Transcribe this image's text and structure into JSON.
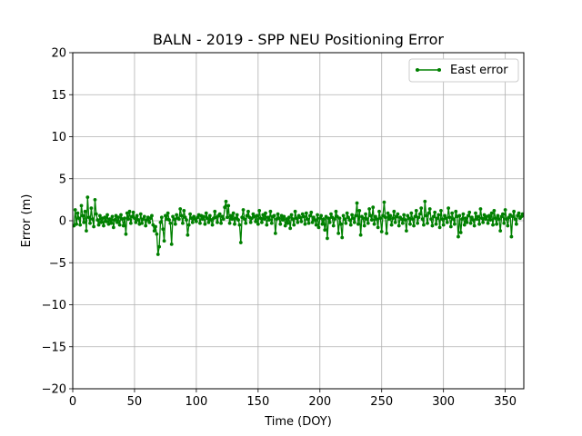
{
  "chart_data": {
    "type": "line",
    "title": "BALN - 2019 - SPP NEU Positioning Error",
    "xlabel": "Time (DOY)",
    "ylabel": "Error (m)",
    "xlim": [
      0,
      365
    ],
    "ylim": [
      -20,
      20
    ],
    "xticks": [
      0,
      50,
      100,
      150,
      200,
      250,
      300,
      350
    ],
    "yticks": [
      -20,
      -15,
      -10,
      -5,
      0,
      5,
      10,
      15,
      20
    ],
    "xtick_labels": [
      "0",
      "50",
      "100",
      "150",
      "200",
      "250",
      "300",
      "350"
    ],
    "ytick_labels": [
      "−20",
      "−15",
      "−10",
      "−5",
      "0",
      "5",
      "10",
      "15",
      "20"
    ],
    "grid": true,
    "legend_position": "top-right",
    "series": [
      {
        "name": "East error",
        "color": "#008000",
        "marker": "dot",
        "x": [
          1,
          2,
          3,
          4,
          5,
          6,
          7,
          8,
          9,
          10,
          11,
          12,
          13,
          14,
          15,
          16,
          17,
          18,
          19,
          20,
          21,
          22,
          23,
          24,
          25,
          26,
          27,
          28,
          29,
          30,
          31,
          32,
          33,
          34,
          35,
          36,
          37,
          38,
          39,
          40,
          41,
          42,
          43,
          44,
          45,
          46,
          47,
          48,
          49,
          50,
          51,
          52,
          53,
          54,
          55,
          56,
          57,
          58,
          59,
          60,
          61,
          62,
          63,
          64,
          65,
          66,
          67,
          68,
          69,
          70,
          71,
          72,
          73,
          74,
          75,
          76,
          77,
          78,
          79,
          80,
          81,
          82,
          83,
          84,
          85,
          86,
          87,
          88,
          89,
          90,
          91,
          92,
          93,
          94,
          95,
          96,
          97,
          98,
          99,
          100,
          101,
          102,
          103,
          104,
          105,
          106,
          107,
          108,
          109,
          110,
          111,
          112,
          113,
          114,
          115,
          116,
          117,
          118,
          119,
          120,
          121,
          122,
          123,
          124,
          125,
          126,
          127,
          128,
          129,
          130,
          131,
          132,
          133,
          134,
          135,
          136,
          137,
          138,
          139,
          140,
          141,
          142,
          143,
          144,
          145,
          146,
          147,
          148,
          149,
          150,
          151,
          152,
          153,
          154,
          155,
          156,
          157,
          158,
          159,
          160,
          161,
          162,
          163,
          164,
          165,
          166,
          167,
          168,
          169,
          170,
          171,
          172,
          173,
          174,
          175,
          176,
          177,
          178,
          179,
          180,
          181,
          182,
          183,
          184,
          185,
          186,
          187,
          188,
          189,
          190,
          191,
          192,
          193,
          194,
          195,
          196,
          197,
          198,
          199,
          200,
          201,
          202,
          203,
          204,
          205,
          206,
          207,
          208,
          209,
          210,
          211,
          212,
          213,
          214,
          215,
          216,
          217,
          218,
          219,
          220,
          221,
          222,
          223,
          224,
          225,
          226,
          227,
          228,
          229,
          230,
          231,
          232,
          233,
          234,
          235,
          236,
          237,
          238,
          239,
          240,
          241,
          242,
          243,
          244,
          245,
          246,
          247,
          248,
          249,
          250,
          251,
          252,
          253,
          254,
          255,
          256,
          257,
          258,
          259,
          260,
          261,
          262,
          263,
          264,
          265,
          266,
          267,
          268,
          269,
          270,
          271,
          272,
          273,
          274,
          275,
          276,
          277,
          278,
          279,
          280,
          281,
          282,
          283,
          284,
          285,
          286,
          287,
          288,
          289,
          290,
          291,
          292,
          293,
          294,
          295,
          296,
          297,
          298,
          299,
          300,
          301,
          302,
          303,
          304,
          305,
          306,
          307,
          308,
          309,
          310,
          311,
          312,
          313,
          314,
          315,
          316,
          317,
          318,
          319,
          320,
          321,
          322,
          323,
          324,
          325,
          326,
          327,
          328,
          329,
          330,
          331,
          332,
          333,
          334,
          335,
          336,
          337,
          338,
          339,
          340,
          341,
          342,
          343,
          344,
          345,
          346,
          347,
          348,
          349,
          350,
          351,
          352,
          353,
          354,
          355,
          356,
          357,
          358,
          359,
          360,
          361,
          362,
          363,
          364,
          365
        ],
        "y": [
          -0.6,
          1.3,
          -0.4,
          0.9,
          0.3,
          -0.5,
          1.8,
          0.6,
          -0.2,
          1.1,
          -1.2,
          2.8,
          0.4,
          -0.3,
          1.5,
          0.2,
          -0.7,
          2.5,
          0.8,
          0.1,
          -0.5,
          0.6,
          -0.2,
          0.3,
          -0.6,
          0.4,
          -0.1,
          0.7,
          -0.4,
          0.2,
          -0.3,
          0.5,
          -0.8,
          0.1,
          0.6,
          -0.2,
          0.4,
          -0.5,
          0.7,
          0.2,
          -0.6,
          0.3,
          -1.6,
          0.9,
          0.2,
          1.1,
          -0.3,
          0.5,
          1.0,
          0.3,
          -0.2,
          0.6,
          0.1,
          -0.4,
          0.8,
          -0.3,
          0.2,
          0.5,
          -0.6,
          0.1,
          0.4,
          -0.2,
          0.3,
          0.6,
          -0.5,
          -1.2,
          -0.7,
          -1.6,
          -4.0,
          -3.1,
          -0.2,
          0.4,
          -1.0,
          -2.4,
          0.6,
          0.2,
          0.9,
          0.1,
          -0.3,
          -2.8,
          0.5,
          0.2,
          -0.4,
          0.7,
          0.3,
          0.2,
          1.4,
          0.6,
          -0.3,
          1.2,
          0.4,
          0.1,
          -1.7,
          -0.5,
          0.8,
          0.3,
          -0.2,
          0.5,
          0.2,
          -0.1,
          0.4,
          0.7,
          -0.3,
          0.6,
          0.2,
          0.5,
          -0.4,
          0.9,
          0.3,
          -0.2,
          0.6,
          0.1,
          -0.5,
          0.3,
          1.1,
          0.4,
          -0.2,
          0.6,
          0.8,
          -0.3,
          0.5,
          0.2,
          1.6,
          2.3,
          0.4,
          1.8,
          -0.3,
          0.6,
          0.2,
          0.9,
          -0.4,
          0.3,
          0.7,
          0.1,
          -0.5,
          -2.6,
          0.4,
          1.3,
          0.2,
          -0.3,
          0.6,
          1.1,
          0.4,
          -0.2,
          0.3,
          0.8,
          0.5,
          -0.1,
          0.6,
          -0.4,
          1.2,
          0.3,
          -0.2,
          0.7,
          0.2,
          0.9,
          -0.5,
          0.4,
          0.1,
          1.1,
          -0.3,
          0.5,
          0.6,
          -1.5,
          0.2,
          0.8,
          0.3,
          -0.4,
          0.6,
          0.1,
          0.5,
          -0.6,
          0.2,
          -0.3,
          0.4,
          -0.9,
          0.7,
          0.2,
          -0.5,
          1.1,
          0.3,
          -0.2,
          0.6,
          0.4,
          -0.1,
          0.8,
          0.5,
          -0.4,
          0.9,
          0.2,
          -0.3,
          0.6,
          1.0,
          -0.2,
          0.4,
          0.1,
          -0.5,
          0.7,
          -0.8,
          0.3,
          0.6,
          -0.4,
          0.2,
          -1.1,
          0.5,
          -2.1,
          0.3,
          -0.2,
          0.8,
          0.4,
          -0.6,
          0.2,
          1.1,
          0.5,
          -1.5,
          0.3,
          -0.4,
          -2.0,
          0.6,
          0.2,
          -0.3,
          0.9,
          0.4,
          0.1,
          -0.5,
          0.7,
          0.3,
          -0.2,
          0.6,
          2.1,
          -0.4,
          1.2,
          -1.7,
          0.5,
          0.3,
          -0.6,
          0.8,
          0.2,
          -0.3,
          1.4,
          0.6,
          0.1,
          1.6,
          -0.4,
          0.5,
          0.2,
          -0.8,
          1.1,
          0.3,
          -1.3,
          0.6,
          2.2,
          0.4,
          -1.5,
          0.9,
          0.2,
          0.6,
          -0.5,
          0.3,
          1.1,
          -0.2,
          0.5,
          0.8,
          -0.6,
          0.4,
          0.2,
          -0.3,
          0.7,
          0.1,
          -1.2,
          0.6,
          0.3,
          -0.4,
          0.9,
          0.2,
          -0.6,
          0.5,
          1.2,
          -0.3,
          0.4,
          0.8,
          1.5,
          0.2,
          -0.5,
          2.3,
          0.6,
          -0.3,
          0.9,
          1.4,
          0.2,
          -0.6,
          0.5,
          1.0,
          -0.4,
          0.3,
          0.7,
          -0.8,
          1.2,
          0.2,
          -0.5,
          0.6,
          0.3,
          -0.2,
          1.5,
          0.4,
          -0.7,
          0.9,
          0.2,
          -0.4,
          1.1,
          0.5,
          -1.9,
          0.6,
          -1.4,
          0.2,
          0.8,
          -0.5,
          0.3,
          -0.2,
          0.6,
          1.0,
          -0.3,
          0.4,
          0.1,
          -0.6,
          0.9,
          0.2,
          0.5,
          -0.4,
          1.4,
          0.3,
          -0.2,
          0.7,
          0.2,
          0.5,
          -0.3,
          0.6,
          0.1,
          0.9,
          -0.5,
          1.2,
          0.3,
          -0.4,
          0.6,
          0.2,
          -1.2,
          0.5,
          0.8,
          -0.3,
          1.3,
          0.2,
          -0.6,
          0.4,
          0.7,
          -1.9,
          0.5,
          1.1,
          0.2,
          -0.4,
          0.6,
          0.9,
          0.3,
          0.5,
          0.8,
          0.6
        ]
      }
    ]
  }
}
